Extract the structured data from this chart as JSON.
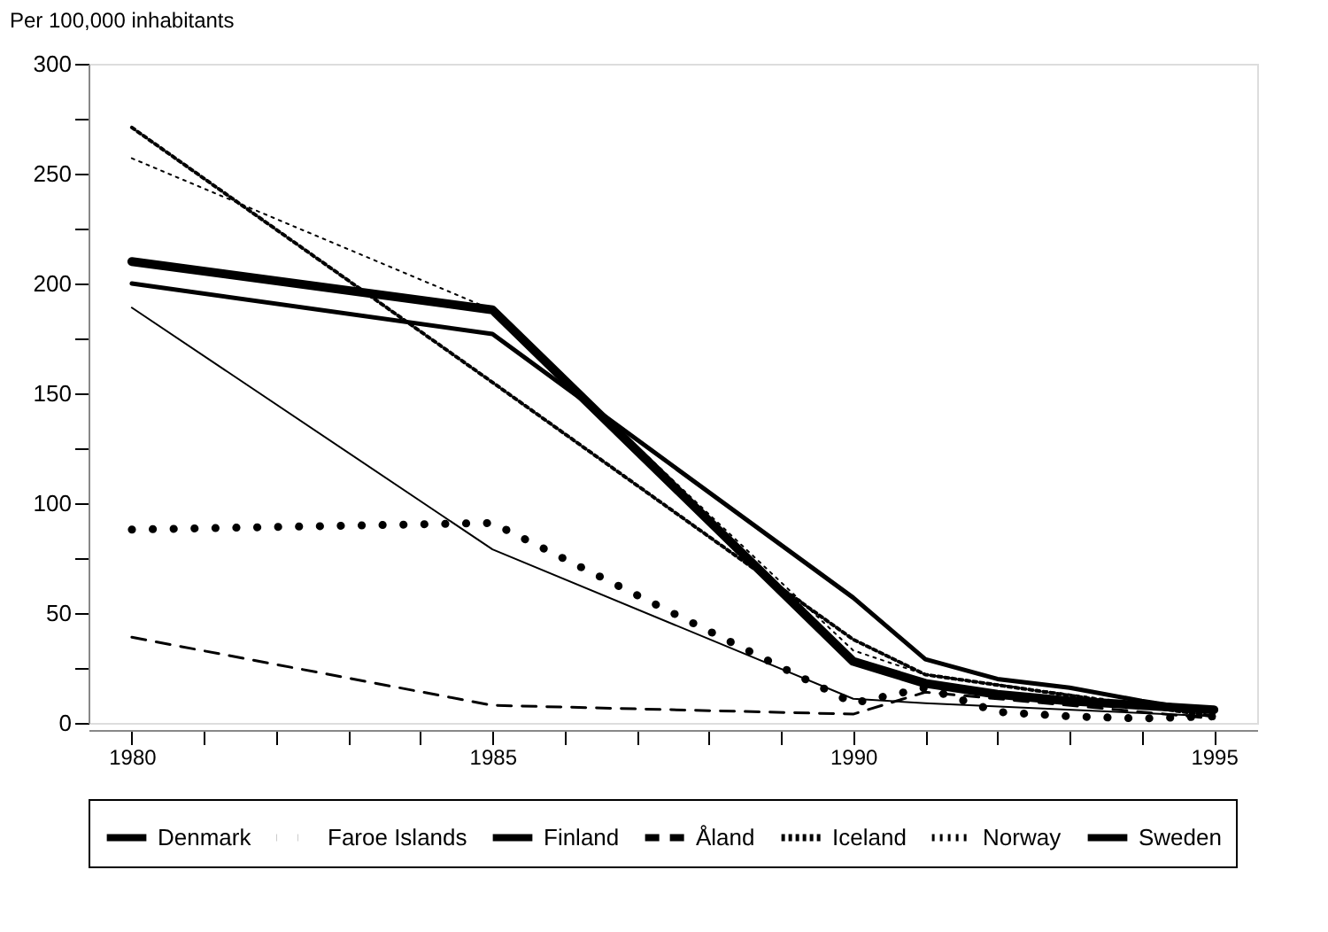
{
  "chart_data": {
    "type": "line",
    "ylabel": "Per 100,000 inhabitants",
    "series": [
      {
        "name": "Denmark",
        "color": "#000000",
        "line_style": "solid",
        "x": [
          1980,
          1985,
          1990,
          1991,
          1992,
          1993,
          1994,
          1995
        ],
        "values": [
          210,
          188,
          28,
          18,
          13,
          10,
          8,
          6
        ]
      },
      {
        "name": "Faroe Islands",
        "color": "#000000",
        "line_style": "dotted",
        "x": [
          1980,
          1985,
          1990,
          1991,
          1992,
          1993,
          1994,
          1995
        ],
        "values": [
          88,
          91,
          9,
          16,
          5,
          3,
          2,
          3
        ]
      },
      {
        "name": "Finland",
        "color": "#000000",
        "line_style": "solid",
        "x": [
          1980,
          1985,
          1990,
          1991,
          1992,
          1993,
          1994,
          1995
        ],
        "values": [
          200,
          177,
          57,
          29,
          20,
          16,
          10,
          5
        ]
      },
      {
        "name": "Åland",
        "color": "#000000",
        "line_style": "dashed",
        "x": [
          1980,
          1985,
          1990,
          1991,
          1995
        ],
        "values": [
          39,
          8,
          4,
          14,
          2
        ]
      },
      {
        "name": "Iceland",
        "color": "#000000",
        "line_style": "dotted",
        "x": [
          1980,
          1985,
          1990,
          1991,
          1995
        ],
        "values": [
          271,
          155,
          38,
          22,
          3
        ]
      },
      {
        "name": "Norway",
        "color": "#000000",
        "line_style": "dotted",
        "x": [
          1980,
          1985,
          1990,
          1991,
          1995
        ],
        "values": [
          257,
          188,
          33,
          22,
          4
        ]
      },
      {
        "name": "Sweden",
        "color": "#000000",
        "line_style": "solid",
        "x": [
          1980,
          1985,
          1990,
          1991,
          1995
        ],
        "values": [
          189,
          79,
          11,
          9,
          3
        ]
      }
    ],
    "xlim": [
      1979.4,
      1995.6
    ],
    "xticks": [
      1980,
      {
        "value": 1981,
        "label": null
      },
      {
        "value": 1982,
        "label": null
      },
      {
        "value": 1983,
        "label": null
      },
      {
        "value": 1984,
        "label": null
      },
      1985,
      {
        "value": 1986,
        "label": null
      },
      {
        "value": 1987,
        "label": null
      },
      {
        "value": 1988,
        "label": null
      },
      {
        "value": 1989,
        "label": null
      },
      1990,
      {
        "value": 1991,
        "label": null
      },
      {
        "value": 1992,
        "label": null
      },
      {
        "value": 1993,
        "label": null
      },
      {
        "value": 1994,
        "label": null
      },
      1995
    ],
    "ylim": [
      0,
      300
    ],
    "yticks": [
      0,
      {
        "value": 25,
        "label": null
      },
      50,
      {
        "value": 75,
        "label": null
      },
      100,
      {
        "value": 125,
        "label": null
      },
      150,
      {
        "value": 175,
        "label": null
      },
      200,
      {
        "value": 225,
        "label": null
      },
      250,
      {
        "value": 275,
        "label": null
      },
      300
    ],
    "grid": false,
    "legend": "bottom",
    "marker": "none"
  }
}
